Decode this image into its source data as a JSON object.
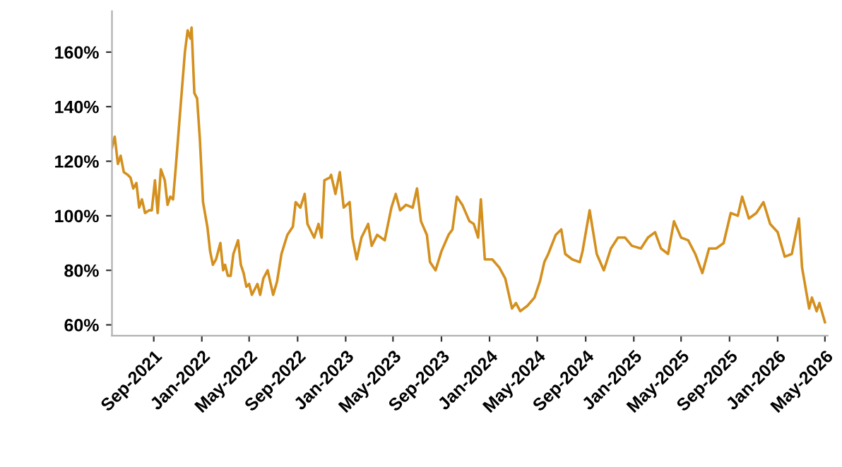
{
  "chart_data": {
    "type": "line",
    "color": "#d4901e",
    "x": [
      "2021-05-18",
      "2021-05-25",
      "2021-06-02",
      "2021-06-09",
      "2021-06-17",
      "2021-06-27",
      "2021-07-04",
      "2021-07-11",
      "2021-07-19",
      "2021-07-26",
      "2021-08-02",
      "2021-08-10",
      "2021-08-20",
      "2021-08-27",
      "2021-09-04",
      "2021-09-11",
      "2021-09-19",
      "2021-09-29",
      "2021-10-06",
      "2021-10-13",
      "2021-10-20",
      "2021-10-27",
      "2021-11-08",
      "2021-11-19",
      "2021-11-26",
      "2021-12-03",
      "2021-12-06",
      "2021-12-13",
      "2021-12-20",
      "2021-12-27",
      "2022-01-04",
      "2022-01-15",
      "2022-01-22",
      "2022-01-29",
      "2022-02-06",
      "2022-02-17",
      "2022-02-24",
      "2022-03-01",
      "2022-03-08",
      "2022-03-15",
      "2022-03-22",
      "2022-04-03",
      "2022-04-10",
      "2022-04-17",
      "2022-04-24",
      "2022-05-01",
      "2022-05-08",
      "2022-05-15",
      "2022-05-22",
      "2022-05-29",
      "2022-06-06",
      "2022-06-17",
      "2022-07-01",
      "2022-07-11",
      "2022-07-22",
      "2022-08-06",
      "2022-08-20",
      "2022-08-27",
      "2022-09-08",
      "2022-09-19",
      "2022-09-26",
      "2022-10-13",
      "2022-10-24",
      "2022-11-01",
      "2022-11-08",
      "2022-11-22",
      "2022-11-25",
      "2022-12-06",
      "2022-12-17",
      "2022-12-27",
      "2023-01-11",
      "2023-01-18",
      "2023-01-29",
      "2023-02-10",
      "2023-02-27",
      "2023-03-08",
      "2023-03-22",
      "2023-04-10",
      "2023-04-27",
      "2023-05-08",
      "2023-05-19",
      "2023-06-03",
      "2023-06-20",
      "2023-07-01",
      "2023-07-11",
      "2023-07-26",
      "2023-08-03",
      "2023-08-17",
      "2023-09-01",
      "2023-09-19",
      "2023-09-29",
      "2023-10-10",
      "2023-10-24",
      "2023-11-11",
      "2023-11-22",
      "2023-12-03",
      "2023-12-10",
      "2023-12-20",
      "2024-01-08",
      "2024-01-26",
      "2024-02-10",
      "2024-02-27",
      "2024-03-08",
      "2024-03-19",
      "2024-04-06",
      "2024-04-24",
      "2024-05-08",
      "2024-05-19",
      "2024-05-29",
      "2024-06-17",
      "2024-07-01",
      "2024-07-11",
      "2024-07-29",
      "2024-08-17",
      "2024-08-24",
      "2024-09-11",
      "2024-09-29",
      "2024-10-17",
      "2024-11-04",
      "2024-11-22",
      "2024-12-10",
      "2024-12-27",
      "2025-01-19",
      "2025-02-06",
      "2025-02-24",
      "2025-03-11",
      "2025-03-29",
      "2025-04-13",
      "2025-05-01",
      "2025-05-19",
      "2025-06-06",
      "2025-06-24",
      "2025-07-11",
      "2025-07-29",
      "2025-08-17",
      "2025-09-04",
      "2025-09-22",
      "2025-10-03",
      "2025-10-20",
      "2025-11-08",
      "2025-11-26",
      "2025-12-13",
      "2026-01-01",
      "2026-01-19",
      "2026-02-06",
      "2026-02-24",
      "2026-03-04",
      "2026-03-22",
      "2026-03-29",
      "2026-04-10",
      "2026-04-17",
      "2026-05-01"
    ],
    "values": [
      125,
      129,
      119,
      122,
      116,
      115,
      114,
      110,
      112,
      103,
      106,
      101,
      102,
      102,
      113,
      101,
      117,
      113,
      104,
      107,
      106,
      118,
      140,
      160,
      168,
      165,
      169,
      145,
      143,
      128,
      105,
      96,
      87,
      82,
      84,
      90,
      80,
      82,
      78,
      78,
      86,
      91,
      82,
      79,
      74,
      75,
      71,
      73,
      75,
      71,
      77,
      80,
      71,
      76,
      86,
      93,
      96,
      105,
      103,
      108,
      97,
      92,
      97,
      92,
      113,
      114,
      115,
      108,
      116,
      103,
      105,
      92,
      84,
      92,
      97,
      89,
      93,
      91,
      103,
      108,
      102,
      104,
      103,
      110,
      98,
      93,
      83,
      80,
      87,
      93,
      95,
      107,
      104,
      98,
      97,
      92,
      106,
      84,
      84,
      81,
      77,
      66,
      68,
      65,
      67,
      70,
      76,
      83,
      86,
      93,
      95,
      86,
      84,
      83,
      87,
      102,
      86,
      80,
      88,
      92,
      92,
      89,
      88,
      92,
      94,
      88,
      86,
      98,
      92,
      91,
      86,
      79,
      88,
      88,
      90,
      101,
      100,
      107,
      99,
      101,
      105,
      97,
      94,
      85,
      86,
      99,
      81,
      66,
      70,
      65,
      68,
      61
    ],
    "xlim": [
      "2021-05-18",
      "2026-05-08"
    ],
    "xticks": [
      {
        "value": "2021-09-01",
        "label": "Sep-2021"
      },
      {
        "value": "2022-01-01",
        "label": "Jan-2022"
      },
      {
        "value": "2022-05-01",
        "label": "May-2022"
      },
      {
        "value": "2022-09-01",
        "label": "Sep-2022"
      },
      {
        "value": "2023-01-01",
        "label": "Jan-2023"
      },
      {
        "value": "2023-05-01",
        "label": "May-2023"
      },
      {
        "value": "2023-09-01",
        "label": "Sep-2023"
      },
      {
        "value": "2024-01-01",
        "label": "Jan-2024"
      },
      {
        "value": "2024-05-01",
        "label": "May-2024"
      },
      {
        "value": "2024-09-01",
        "label": "Sep-2024"
      },
      {
        "value": "2025-01-01",
        "label": "Jan-2025"
      },
      {
        "value": "2025-05-01",
        "label": "May-2025"
      },
      {
        "value": "2025-09-01",
        "label": "Sep-2025"
      },
      {
        "value": "2026-01-01",
        "label": "Jan-2026"
      },
      {
        "value": "2026-05-01",
        "label": "May-2026"
      }
    ],
    "ylim": [
      56,
      175
    ],
    "yticks": [
      {
        "value": 60,
        "label": "60%"
      },
      {
        "value": 80,
        "label": "80%"
      },
      {
        "value": 100,
        "label": "100%"
      },
      {
        "value": 120,
        "label": "120%"
      },
      {
        "value": 140,
        "label": "140%"
      },
      {
        "value": 160,
        "label": "160%"
      }
    ],
    "grid": false,
    "legend": false,
    "marker": "none",
    "line_style": "solid"
  }
}
